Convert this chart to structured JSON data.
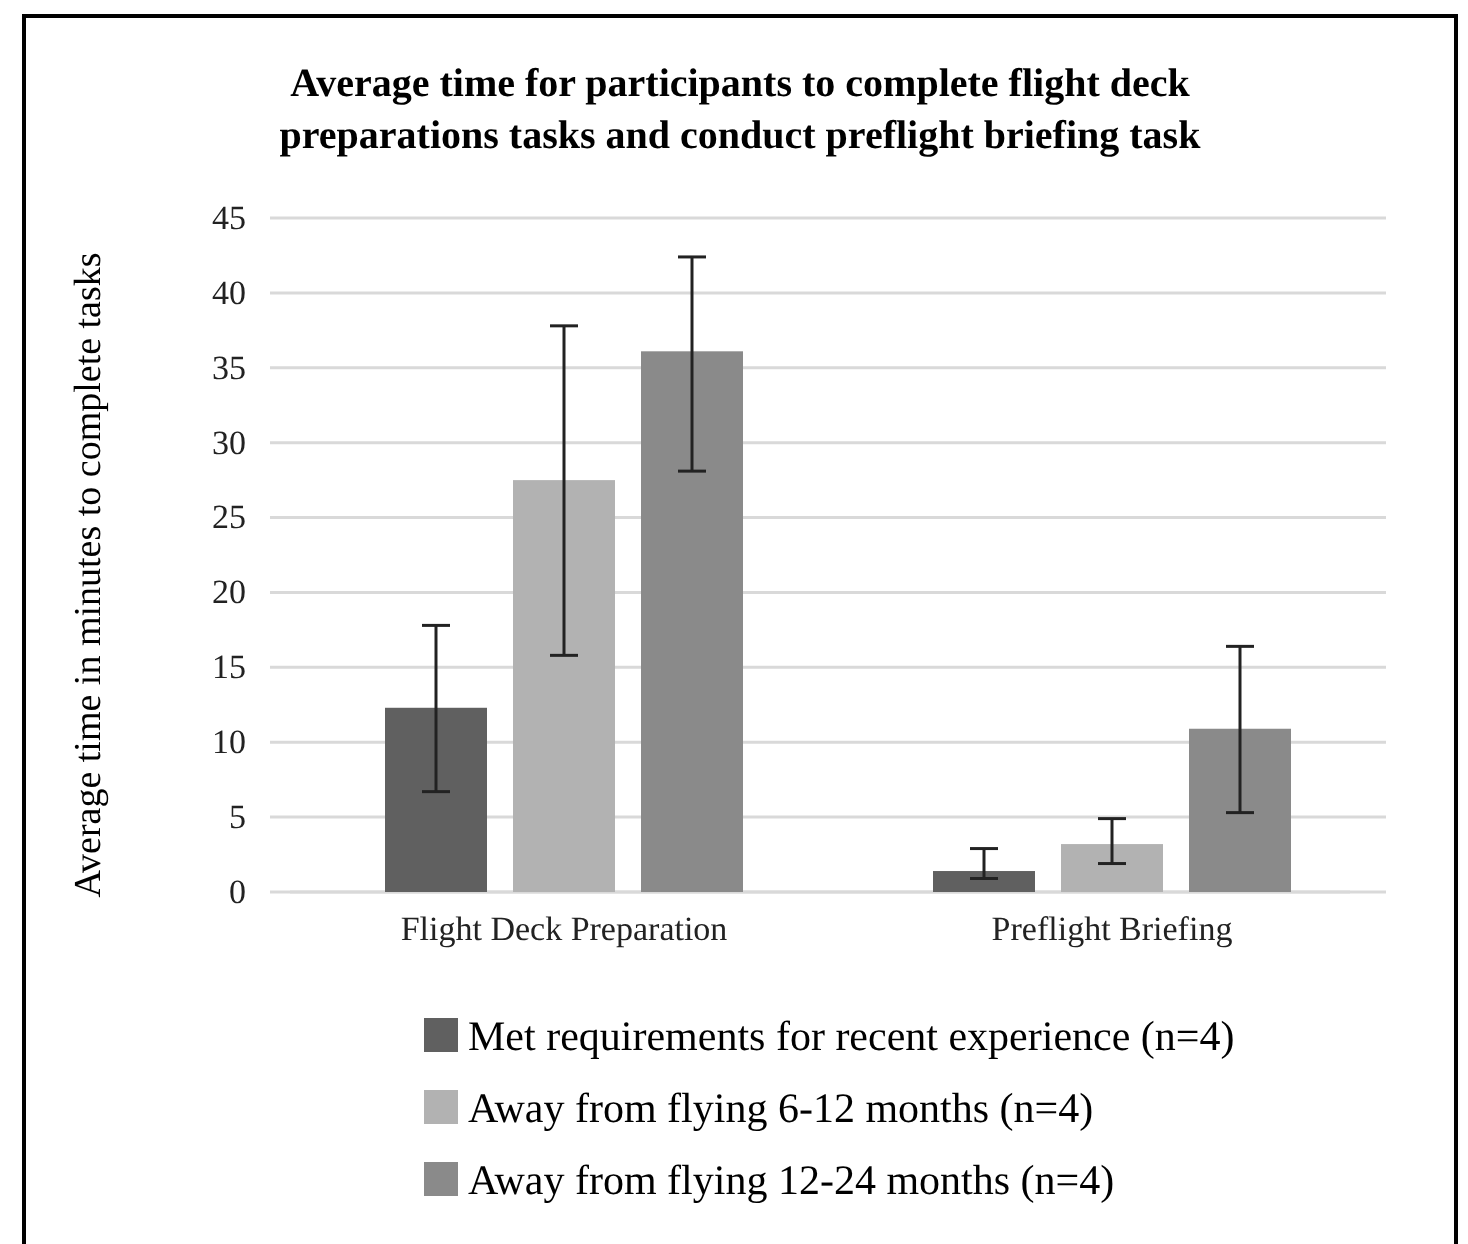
{
  "chart_data": {
    "type": "bar",
    "title": "Average time for participants to complete flight deck preparations tasks and conduct preflight briefing task",
    "ylabel": "Average time in minutes to complete tasks",
    "categories": [
      "Flight Deck Preparation",
      "Preflight Briefing"
    ],
    "series": [
      {
        "name": "Met requirements for recent experience (n=4)",
        "color": "#606060",
        "values": [
          12.3,
          1.4
        ],
        "errors": [
          [
            6.7,
            17.8
          ],
          [
            0.9,
            2.9
          ]
        ]
      },
      {
        "name": "Away from flying 6-12 months (n=4)",
        "color": "#b2b2b2",
        "values": [
          27.5,
          3.2
        ],
        "errors": [
          [
            15.8,
            37.8
          ],
          [
            1.9,
            4.9
          ]
        ]
      },
      {
        "name": "Away from flying 12-24 months (n=4)",
        "color": "#8a8a8a",
        "values": [
          36.1,
          10.9
        ],
        "errors": [
          [
            28.1,
            42.4
          ],
          [
            5.3,
            16.4
          ]
        ]
      }
    ],
    "ylim": [
      0,
      45
    ],
    "yticks": [
      0,
      5,
      10,
      15,
      20,
      25,
      30,
      35,
      40,
      45
    ],
    "grid": "y",
    "legend": "bottom"
  }
}
